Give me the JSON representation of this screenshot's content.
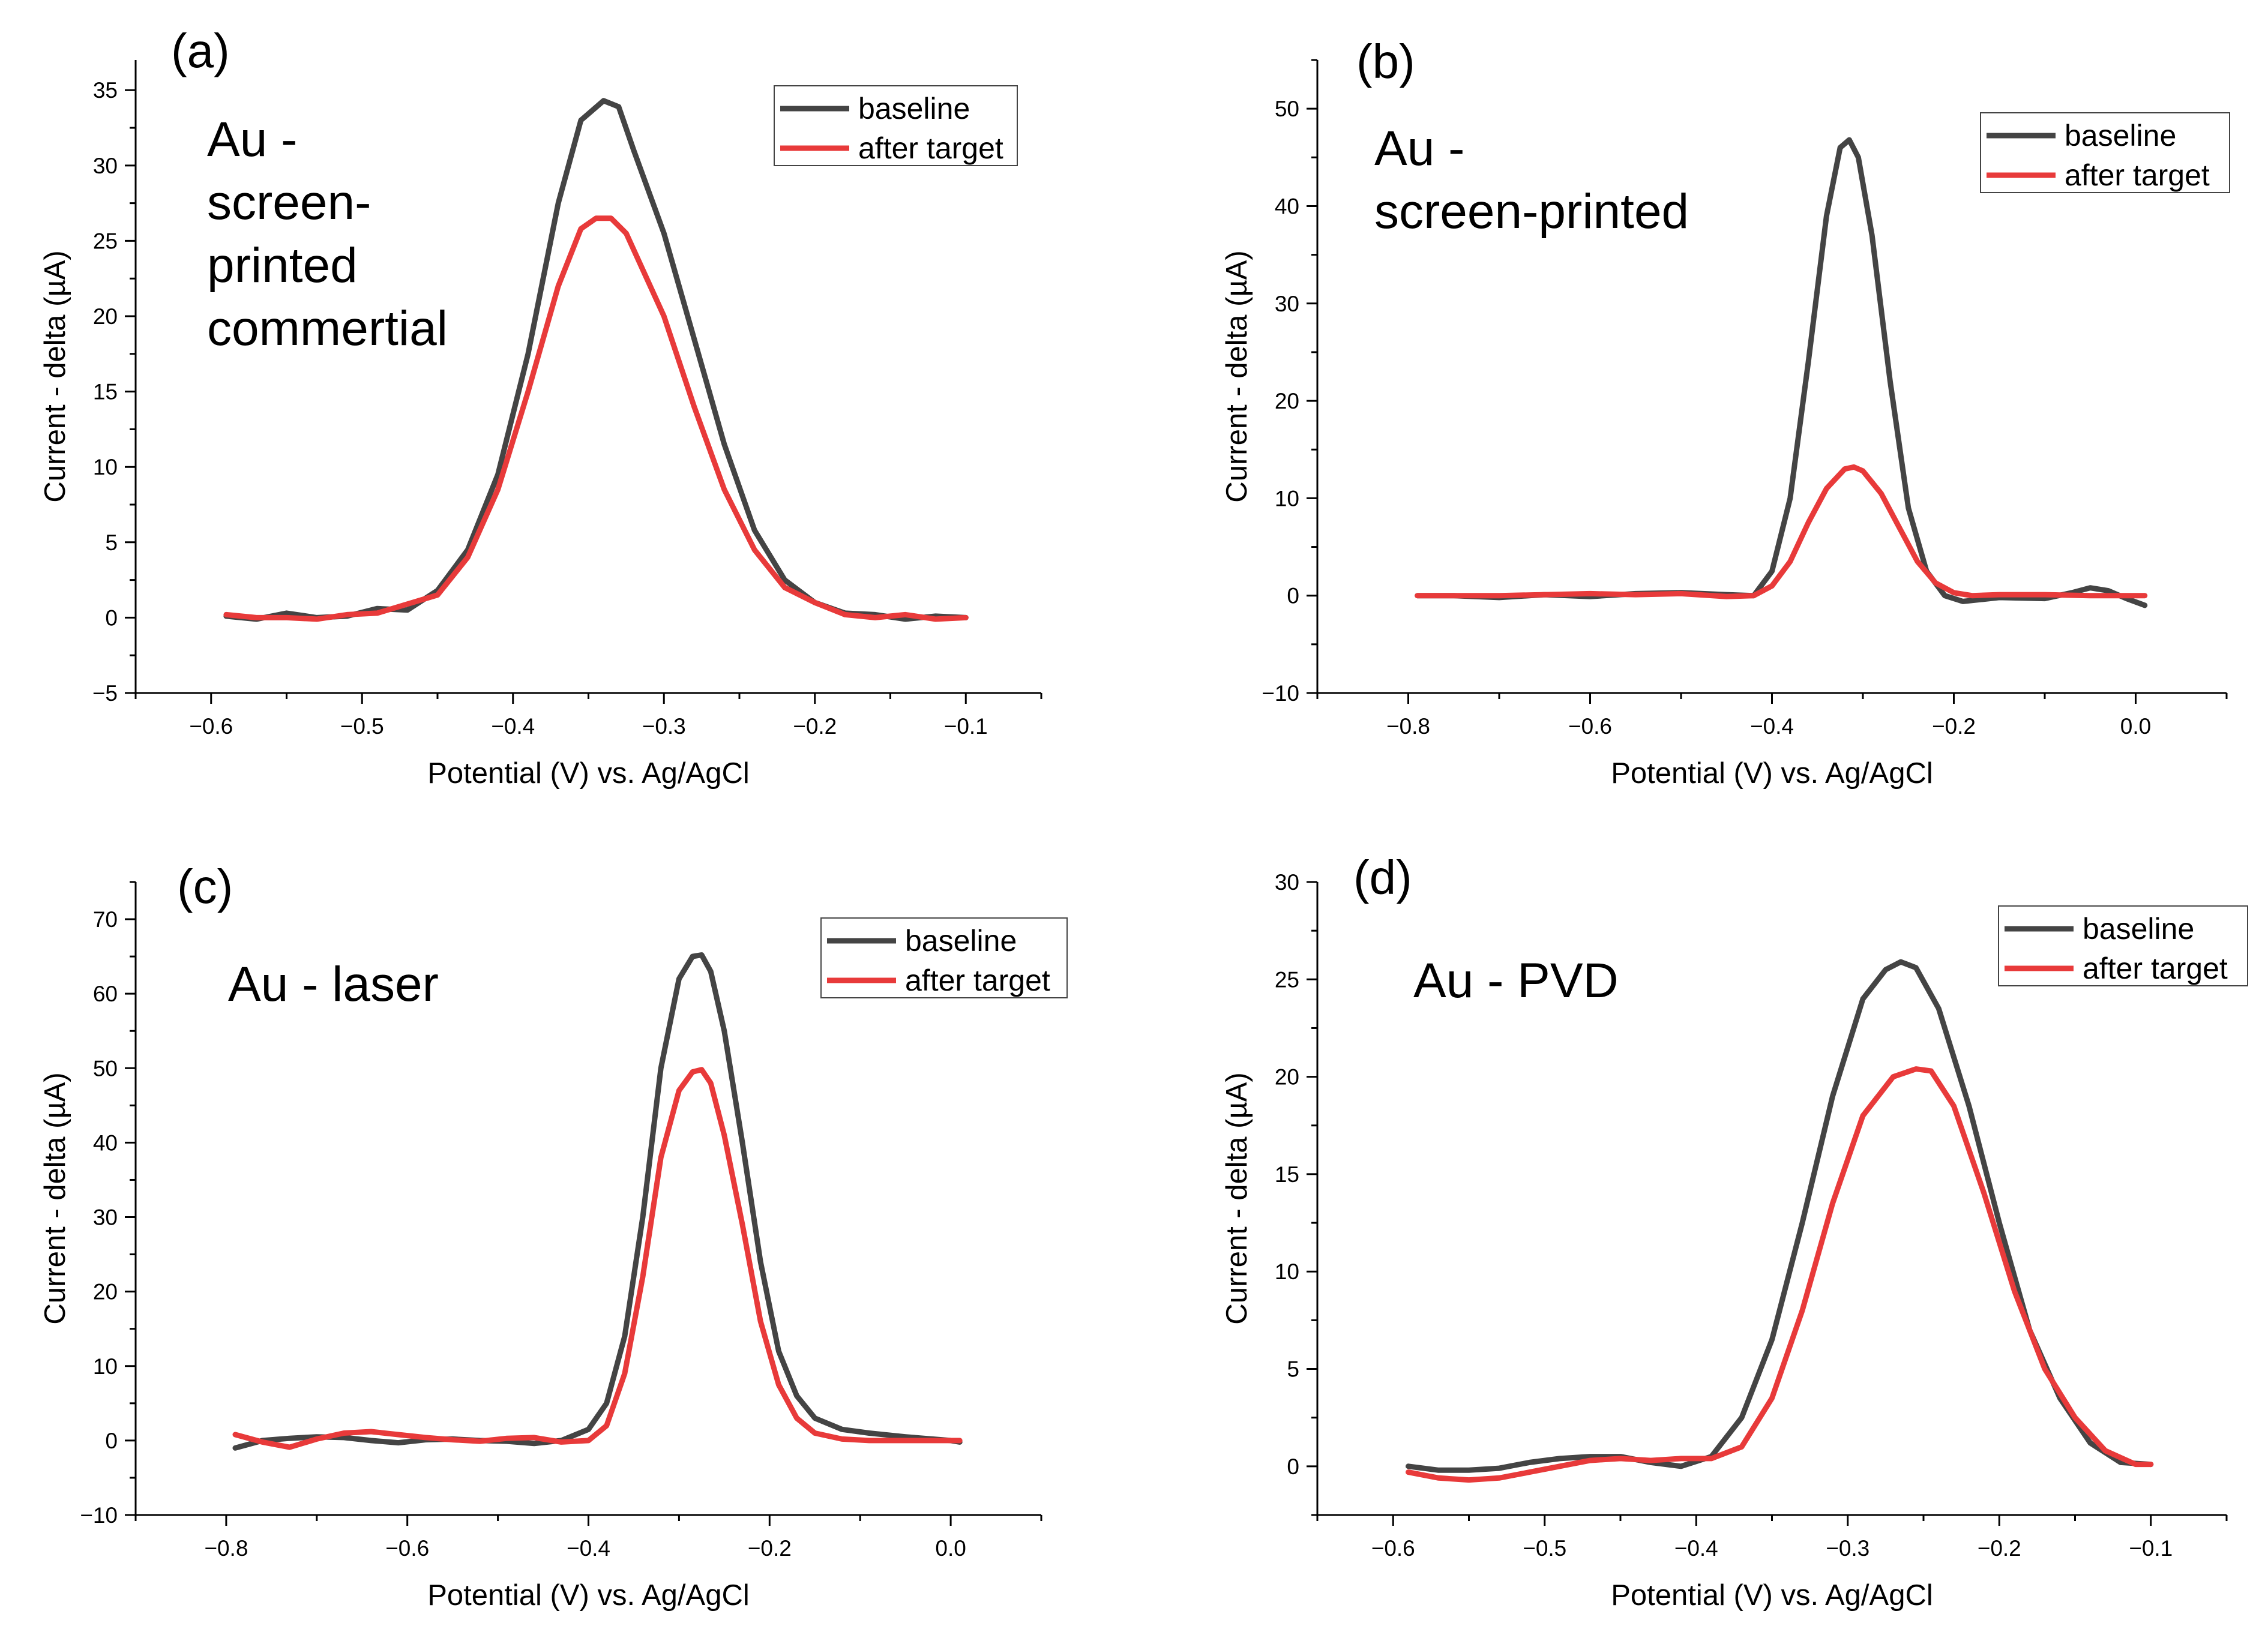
{
  "figure": {
    "colors": {
      "baseline": "#444444",
      "after_target": "#e83a3a",
      "axis": "#000000"
    }
  },
  "chart_data": [
    {
      "type": "line",
      "panel": "(a)",
      "annotation": [
        "Au -",
        "screen-",
        "printed",
        "commertial"
      ],
      "xlabel": "Potential (V) vs. Ag/AgCl",
      "ylabel": "Current - delta (µA)",
      "xlim": [
        -0.65,
        -0.05
      ],
      "ylim": [
        -5,
        37
      ],
      "xticks": [
        -0.6,
        -0.5,
        -0.4,
        -0.3,
        -0.2,
        -0.1
      ],
      "xtick_labels": [
        "−0.6",
        "−0.5",
        "−0.4",
        "−0.3",
        "−0.2",
        "−0.1"
      ],
      "yticks": [
        -5,
        0,
        5,
        10,
        15,
        20,
        25,
        30,
        35
      ],
      "ytick_labels": [
        "−5",
        "0",
        "5",
        "10",
        "15",
        "20",
        "25",
        "30",
        "35"
      ],
      "legend": {
        "position": "top-right",
        "entries": [
          "baseline",
          "after target"
        ]
      },
      "series": [
        {
          "name": "baseline",
          "x": [
            -0.59,
            -0.57,
            -0.55,
            -0.53,
            -0.51,
            -0.49,
            -0.47,
            -0.45,
            -0.43,
            -0.41,
            -0.39,
            -0.37,
            -0.355,
            -0.34,
            -0.33,
            -0.32,
            -0.3,
            -0.28,
            -0.26,
            -0.24,
            -0.22,
            -0.2,
            -0.18,
            -0.16,
            -0.14,
            -0.12,
            -0.1
          ],
          "y": [
            0.1,
            -0.1,
            0.3,
            0.0,
            0.1,
            0.6,
            0.5,
            1.8,
            4.5,
            9.5,
            17.5,
            27.5,
            33.0,
            34.3,
            33.9,
            31.0,
            25.5,
            18.5,
            11.5,
            5.8,
            2.5,
            1.0,
            0.3,
            0.2,
            -0.1,
            0.1,
            0.0
          ]
        },
        {
          "name": "after target",
          "x": [
            -0.59,
            -0.57,
            -0.55,
            -0.53,
            -0.51,
            -0.49,
            -0.47,
            -0.45,
            -0.43,
            -0.41,
            -0.39,
            -0.37,
            -0.355,
            -0.345,
            -0.335,
            -0.325,
            -0.3,
            -0.28,
            -0.26,
            -0.24,
            -0.22,
            -0.2,
            -0.18,
            -0.16,
            -0.14,
            -0.12,
            -0.1
          ],
          "y": [
            0.2,
            0.0,
            0.0,
            -0.1,
            0.2,
            0.3,
            0.9,
            1.5,
            4.0,
            8.5,
            15.0,
            22.0,
            25.8,
            26.5,
            26.5,
            25.5,
            20.0,
            14.0,
            8.5,
            4.5,
            2.0,
            1.0,
            0.2,
            0.0,
            0.2,
            -0.1,
            0.0
          ]
        }
      ]
    },
    {
      "type": "line",
      "panel": "(b)",
      "annotation": [
        "Au -",
        "screen-printed"
      ],
      "xlabel": "Potential (V) vs. Ag/AgCl",
      "ylabel": "Current - delta (µA)",
      "xlim": [
        -0.9,
        0.1
      ],
      "ylim": [
        -10,
        55
      ],
      "xticks": [
        -0.8,
        -0.6,
        -0.4,
        -0.2,
        0.0
      ],
      "xtick_labels": [
        "−0.8",
        "−0.6",
        "−0.4",
        "−0.2",
        "0.0"
      ],
      "yticks": [
        -10,
        0,
        10,
        20,
        30,
        40,
        50
      ],
      "ytick_labels": [
        "−10",
        "0",
        "10",
        "20",
        "30",
        "40",
        "50"
      ],
      "legend": {
        "position": "top-right",
        "entries": [
          "baseline",
          "after target"
        ]
      },
      "series": [
        {
          "name": "baseline",
          "x": [
            -0.79,
            -0.75,
            -0.7,
            -0.65,
            -0.6,
            -0.55,
            -0.5,
            -0.45,
            -0.42,
            -0.4,
            -0.38,
            -0.36,
            -0.34,
            -0.325,
            -0.315,
            -0.305,
            -0.29,
            -0.27,
            -0.25,
            -0.23,
            -0.21,
            -0.19,
            -0.17,
            -0.15,
            -0.1,
            -0.07,
            -0.05,
            -0.03,
            -0.01,
            0.01
          ],
          "y": [
            0.0,
            0.0,
            -0.2,
            0.1,
            -0.1,
            0.2,
            0.3,
            0.1,
            0.0,
            2.5,
            10.0,
            24.0,
            39.0,
            46.0,
            46.8,
            45.0,
            37.0,
            22.0,
            9.0,
            2.5,
            0.0,
            -0.6,
            -0.4,
            -0.2,
            -0.3,
            0.3,
            0.8,
            0.5,
            -0.3,
            -1.0
          ]
        },
        {
          "name": "after target",
          "x": [
            -0.79,
            -0.75,
            -0.7,
            -0.65,
            -0.6,
            -0.55,
            -0.5,
            -0.45,
            -0.42,
            -0.4,
            -0.38,
            -0.36,
            -0.34,
            -0.32,
            -0.31,
            -0.3,
            -0.28,
            -0.26,
            -0.24,
            -0.22,
            -0.2,
            -0.18,
            -0.15,
            -0.1,
            -0.05,
            0.0,
            0.01
          ],
          "y": [
            0.0,
            0.0,
            0.0,
            0.1,
            0.2,
            0.1,
            0.2,
            -0.1,
            0.0,
            1.0,
            3.5,
            7.5,
            11.0,
            13.0,
            13.2,
            12.8,
            10.5,
            7.0,
            3.5,
            1.3,
            0.3,
            0.0,
            0.1,
            0.1,
            0.0,
            0.0,
            0.0
          ]
        }
      ]
    },
    {
      "type": "line",
      "panel": "(c)",
      "annotation": [
        "Au - laser"
      ],
      "xlabel": "Potential (V) vs. Ag/AgCl",
      "ylabel": "Current - delta (µA)",
      "xlim": [
        -0.9,
        0.1
      ],
      "ylim": [
        -10,
        75
      ],
      "xticks": [
        -0.8,
        -0.6,
        -0.4,
        -0.2,
        0.0
      ],
      "xtick_labels": [
        "−0.8",
        "−0.6",
        "−0.4",
        "−0.2",
        "0.0"
      ],
      "yticks": [
        -10,
        0,
        10,
        20,
        30,
        40,
        50,
        60,
        70
      ],
      "ytick_labels": [
        "−10",
        "0",
        "10",
        "20",
        "30",
        "40",
        "50",
        "60",
        "70"
      ],
      "legend": {
        "position": "top-right",
        "entries": [
          "baseline",
          "after target"
        ]
      },
      "series": [
        {
          "name": "baseline",
          "x": [
            -0.79,
            -0.76,
            -0.73,
            -0.7,
            -0.67,
            -0.64,
            -0.61,
            -0.58,
            -0.55,
            -0.52,
            -0.49,
            -0.46,
            -0.43,
            -0.4,
            -0.38,
            -0.36,
            -0.34,
            -0.32,
            -0.3,
            -0.285,
            -0.275,
            -0.265,
            -0.25,
            -0.23,
            -0.21,
            -0.19,
            -0.17,
            -0.15,
            -0.12,
            -0.09,
            -0.05,
            0.0,
            0.01
          ],
          "y": [
            -1.0,
            0.0,
            0.3,
            0.5,
            0.4,
            0.0,
            -0.3,
            0.1,
            0.2,
            0.0,
            -0.1,
            -0.4,
            0.0,
            1.5,
            5.0,
            14.0,
            30.0,
            50.0,
            62.0,
            65.0,
            65.2,
            63.0,
            55.0,
            40.0,
            24.0,
            12.0,
            6.0,
            3.0,
            1.5,
            1.0,
            0.5,
            0.0,
            -0.2
          ]
        },
        {
          "name": "after target",
          "x": [
            -0.79,
            -0.76,
            -0.73,
            -0.7,
            -0.67,
            -0.64,
            -0.61,
            -0.58,
            -0.55,
            -0.52,
            -0.49,
            -0.46,
            -0.43,
            -0.4,
            -0.38,
            -0.36,
            -0.34,
            -0.32,
            -0.3,
            -0.285,
            -0.275,
            -0.265,
            -0.25,
            -0.23,
            -0.21,
            -0.19,
            -0.17,
            -0.15,
            -0.12,
            -0.09,
            -0.05,
            0.0,
            0.01
          ],
          "y": [
            0.8,
            -0.2,
            -0.9,
            0.2,
            1.0,
            1.2,
            0.8,
            0.4,
            0.1,
            -0.1,
            0.3,
            0.4,
            -0.2,
            0.0,
            2.0,
            9.0,
            22.0,
            38.0,
            47.0,
            49.5,
            49.8,
            48.0,
            41.0,
            29.0,
            16.0,
            7.5,
            3.0,
            1.0,
            0.2,
            0.0,
            0.0,
            0.0,
            0.0
          ]
        }
      ]
    },
    {
      "type": "line",
      "panel": "(d)",
      "annotation": [
        "Au - PVD"
      ],
      "xlabel": "Potential (V) vs. Ag/AgCl",
      "ylabel": "Current - delta (µA)",
      "xlim": [
        -0.65,
        -0.05
      ],
      "ylim": [
        -2.5,
        30
      ],
      "xticks": [
        -0.6,
        -0.5,
        -0.4,
        -0.3,
        -0.2,
        -0.1
      ],
      "xtick_labels": [
        "−0.6",
        "−0.5",
        "−0.4",
        "−0.3",
        "−0.2",
        "−0.1"
      ],
      "yticks": [
        0,
        5,
        10,
        15,
        20,
        25,
        30
      ],
      "ytick_labels": [
        "0",
        "5",
        "10",
        "15",
        "20",
        "25",
        "30"
      ],
      "legend": {
        "position": "top-right",
        "entries": [
          "baseline",
          "after target"
        ]
      },
      "series": [
        {
          "name": "baseline",
          "x": [
            -0.59,
            -0.57,
            -0.55,
            -0.53,
            -0.51,
            -0.49,
            -0.47,
            -0.45,
            -0.43,
            -0.41,
            -0.39,
            -0.37,
            -0.35,
            -0.33,
            -0.31,
            -0.29,
            -0.275,
            -0.265,
            -0.255,
            -0.24,
            -0.22,
            -0.2,
            -0.18,
            -0.16,
            -0.14,
            -0.12,
            -0.1
          ],
          "y": [
            0.0,
            -0.2,
            -0.2,
            -0.1,
            0.2,
            0.4,
            0.5,
            0.5,
            0.2,
            0.0,
            0.5,
            2.5,
            6.5,
            12.5,
            19.0,
            24.0,
            25.5,
            25.9,
            25.6,
            23.5,
            18.5,
            12.5,
            7.0,
            3.5,
            1.2,
            0.2,
            0.1
          ]
        },
        {
          "name": "after target",
          "x": [
            -0.59,
            -0.57,
            -0.55,
            -0.53,
            -0.51,
            -0.49,
            -0.47,
            -0.45,
            -0.43,
            -0.41,
            -0.39,
            -0.37,
            -0.35,
            -0.33,
            -0.31,
            -0.29,
            -0.27,
            -0.255,
            -0.245,
            -0.23,
            -0.21,
            -0.19,
            -0.17,
            -0.15,
            -0.13,
            -0.11,
            -0.1
          ],
          "y": [
            -0.3,
            -0.6,
            -0.7,
            -0.6,
            -0.3,
            0.0,
            0.3,
            0.4,
            0.3,
            0.4,
            0.4,
            1.0,
            3.5,
            8.0,
            13.5,
            18.0,
            20.0,
            20.4,
            20.3,
            18.5,
            14.0,
            9.0,
            5.0,
            2.5,
            0.8,
            0.1,
            0.1
          ]
        }
      ]
    }
  ]
}
